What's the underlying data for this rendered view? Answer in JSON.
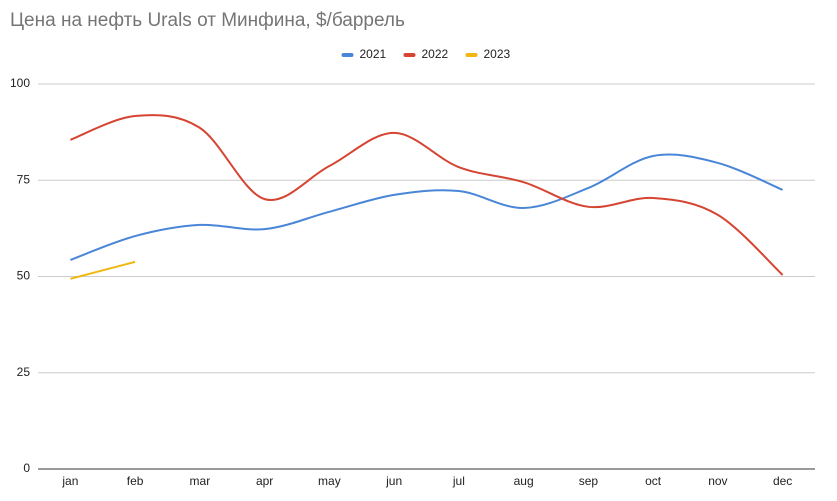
{
  "chart_data": {
    "type": "line",
    "title": "Цена на нефть Urals от Минфина, $/баррель",
    "categories": [
      "jan",
      "feb",
      "mar",
      "apr",
      "may",
      "jun",
      "jul",
      "aug",
      "sep",
      "oct",
      "nov",
      "dec"
    ],
    "series": [
      {
        "name": "2021",
        "color": "#4a86d8",
        "values": [
          54.3,
          60.5,
          63.4,
          62.3,
          66.8,
          71.2,
          72.2,
          67.8,
          73.0,
          81.3,
          79.5,
          72.5
        ]
      },
      {
        "name": "2022",
        "color": "#d64532",
        "values": [
          85.5,
          91.7,
          88.6,
          70.1,
          78.7,
          87.3,
          78.4,
          74.5,
          68.1,
          70.4,
          66.0,
          50.4
        ]
      },
      {
        "name": "2023",
        "color": "#f1b70f",
        "values": [
          49.4,
          53.8,
          null,
          null,
          null,
          null,
          null,
          null,
          null,
          null,
          null,
          null
        ]
      }
    ],
    "ylim": [
      0,
      100
    ],
    "yticks": [
      0,
      25,
      50,
      75,
      100
    ],
    "grid": true,
    "legend": "top",
    "smooth": true
  }
}
